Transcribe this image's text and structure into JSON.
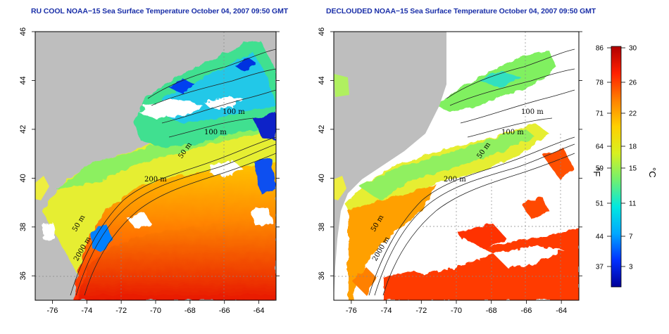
{
  "panels": [
    {
      "id": "raw",
      "title": "RU COOL NOAA−15 Sea Surface Temperature October 04, 2007 09:50 GMT",
      "contour_labels": [
        "100 m",
        "100 m",
        "50 m",
        "200 m",
        "50 m",
        "2000 m"
      ]
    },
    {
      "id": "declouded",
      "title": "DECLOUDED NOAA−15 Sea Surface Temperature October 04, 2007 09:50 GMT",
      "contour_labels": [
        "100 m",
        "100 m",
        "50 m",
        "200 m",
        "50 m",
        "2000 m"
      ]
    }
  ],
  "axes": {
    "x_ticks": [
      -76,
      -74,
      -72,
      -70,
      -68,
      -66,
      -64
    ],
    "y_ticks": [
      36,
      38,
      40,
      42,
      44,
      46
    ],
    "lon_range": [
      -77,
      -63
    ],
    "lat_range": [
      35,
      46
    ]
  },
  "colorbar": {
    "fahrenheit_ticks": [
      "86",
      "78",
      "71",
      "64",
      "59",
      "51",
      "44",
      "37"
    ],
    "celsius_ticks": [
      "30",
      "26",
      "22",
      "18",
      "15",
      "11",
      "7",
      "3"
    ],
    "unit_f": "°F",
    "unit_c": "°C",
    "colors": [
      "#000099",
      "#0030ff",
      "#00a8ff",
      "#00e8e0",
      "#70f070",
      "#d8f020",
      "#ffd000",
      "#ff8000",
      "#ff2000",
      "#b00000"
    ]
  },
  "colors": {
    "land": "#bebebe",
    "cloud": "#ffffff",
    "title": "#1a2fa8"
  }
}
